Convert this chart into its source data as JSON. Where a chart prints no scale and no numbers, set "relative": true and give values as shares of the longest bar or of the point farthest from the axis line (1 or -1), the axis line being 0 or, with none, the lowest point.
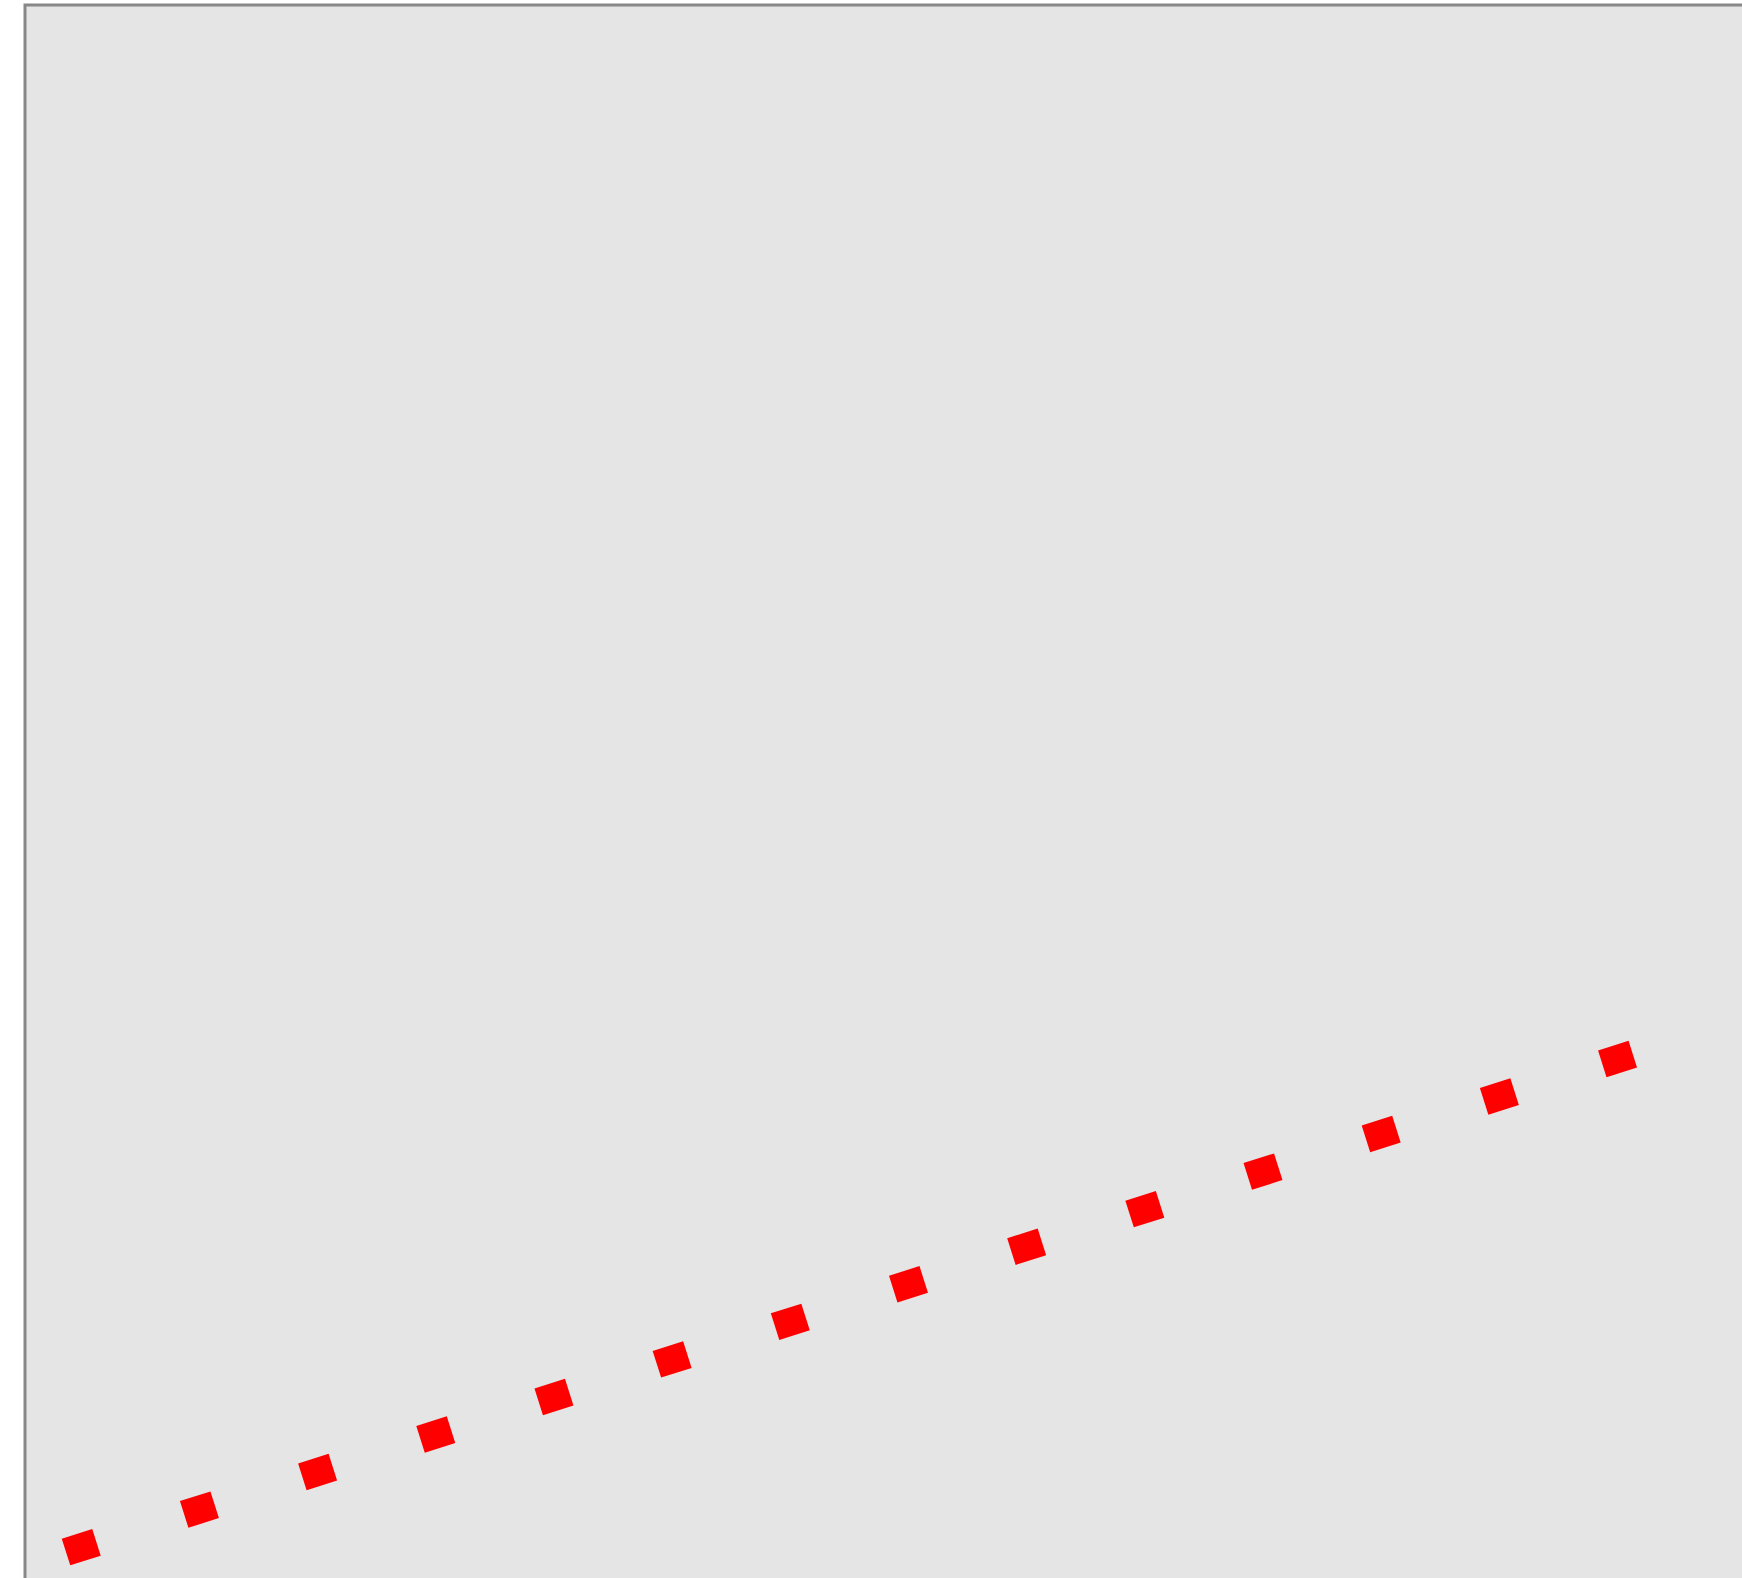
{
  "chart_data": {
    "type": "line",
    "relative": true,
    "categories": [
      null,
      null
    ],
    "series": [
      {
        "color": "#ff0000",
        "values": [
          0,
          1
        ]
      }
    ],
    "line_style": "dotted",
    "marker": "none"
  }
}
